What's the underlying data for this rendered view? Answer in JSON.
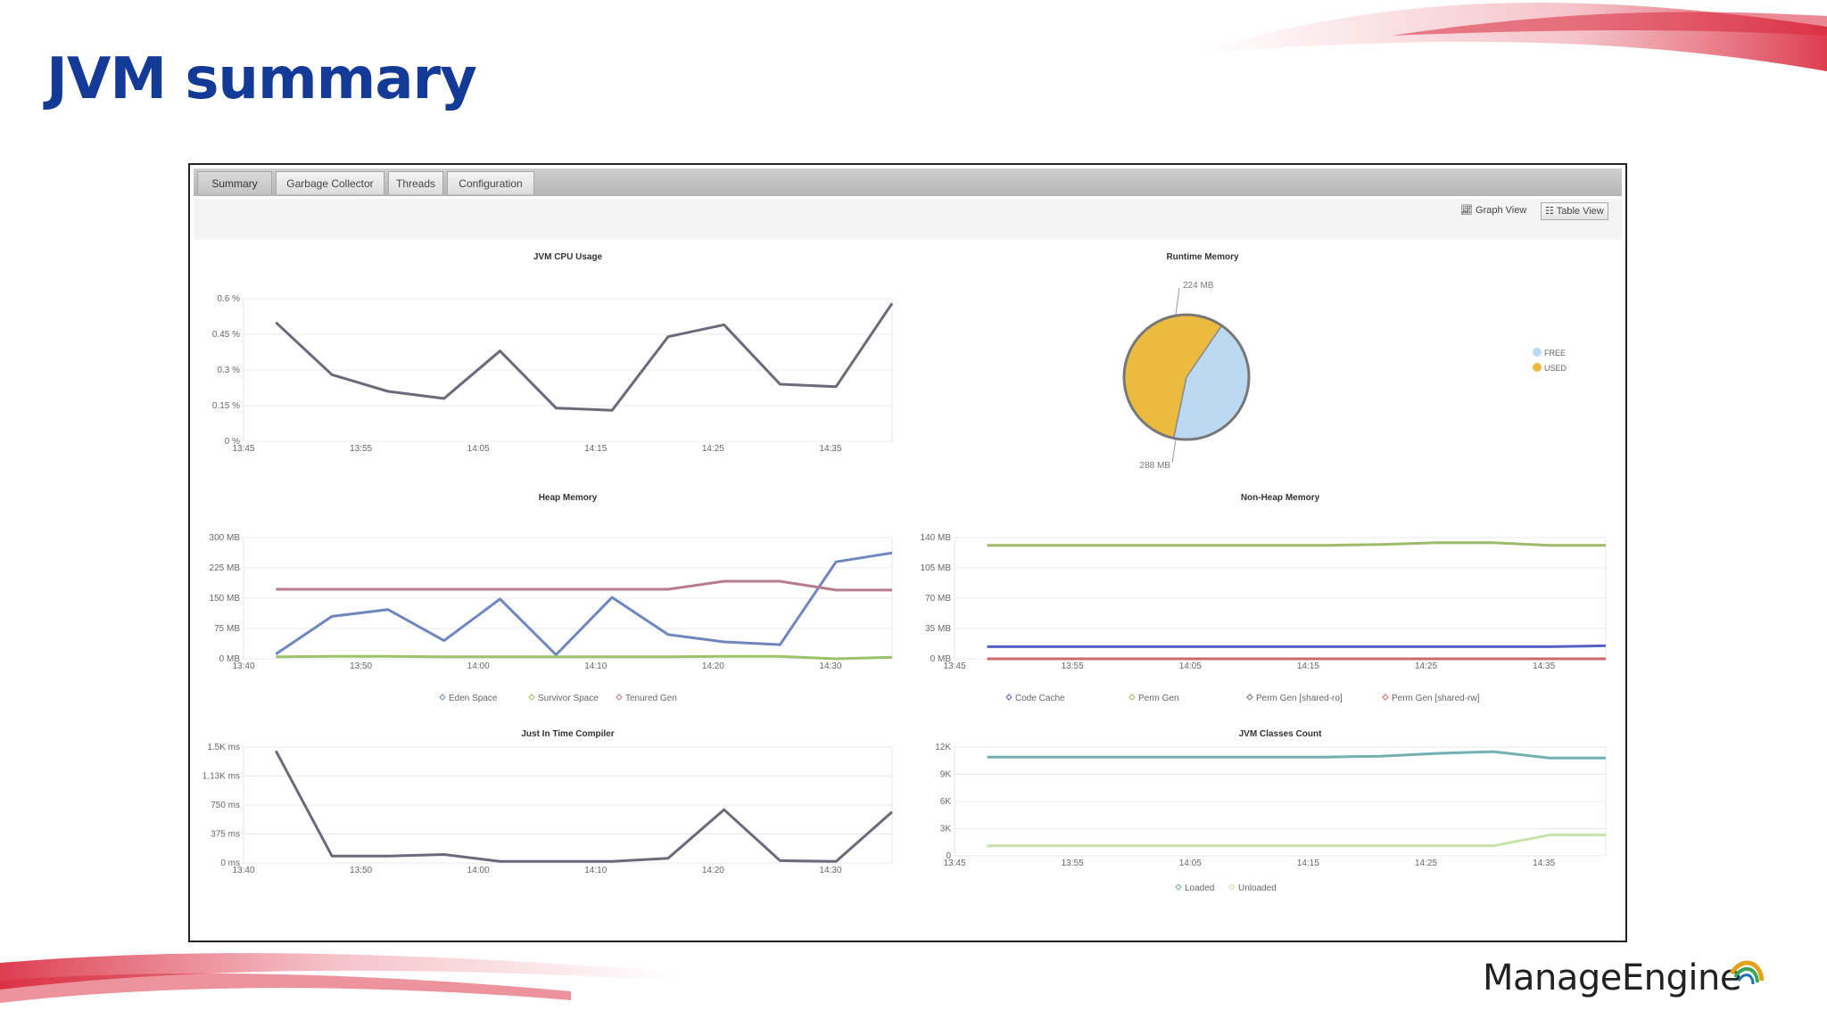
{
  "slide": {
    "title": "JVM summary"
  },
  "brand": {
    "name": "ManageEngine"
  },
  "tabs": [
    "Summary",
    "Garbage Collector",
    "Threads",
    "Configuration"
  ],
  "view_buttons": {
    "graph": "Graph View",
    "table": "Table View"
  },
  "colors": {
    "title": "#123a96",
    "cpu_line": "#6a6a7a",
    "eden": "#6f86c0",
    "survivor": "#9dc26a",
    "tenured": "#b77b8d",
    "code_cache": "#5560c4",
    "perm_gen": "#9dbb6a",
    "perm_ro": "#6a6f82",
    "perm_rw": "#cc6a6a",
    "loaded": "#74b0b0",
    "unloaded": "#c7e3a8",
    "pie_free": "#bcd9f2",
    "pie_used": "#ebbb40"
  },
  "chart_data": [
    {
      "id": "cpu",
      "type": "line",
      "title": "JVM CPU Usage",
      "x": [
        "13:45",
        "13:50",
        "13:55",
        "14:00",
        "14:05",
        "14:10",
        "14:15",
        "14:20",
        "14:25",
        "14:30",
        "14:35",
        "14:40"
      ],
      "xticks": [
        "13:45",
        "13:55",
        "14:05",
        "14:15",
        "14:25",
        "14:35"
      ],
      "ylim": [
        0,
        0.6
      ],
      "yticks": [
        0,
        0.15,
        0.3,
        0.45,
        0.6
      ],
      "yticklabels": [
        "0 %",
        "0.15 %",
        "0.3 %",
        "0.45 %",
        "0.6 %"
      ],
      "series": [
        {
          "values": [
            0.5,
            0.28,
            0.21,
            0.18,
            0.38,
            0.14,
            0.13,
            0.44,
            0.49,
            0.24,
            0.23,
            0.58
          ]
        }
      ]
    },
    {
      "id": "runtime",
      "type": "pie",
      "title": "Runtime Memory",
      "slices": [
        {
          "name": "FREE",
          "value": 224
        },
        {
          "name": "USED",
          "value": 288
        }
      ],
      "labels": [
        "224 MB",
        "288 MB"
      ],
      "legend": "right"
    },
    {
      "id": "heap",
      "type": "line",
      "title": "Heap Memory",
      "x": [
        "13:45",
        "13:50",
        "13:55",
        "14:00",
        "14:05",
        "14:10",
        "14:15",
        "14:20",
        "14:25",
        "14:30",
        "14:35",
        "14:40"
      ],
      "xticks": [
        "13:40",
        "13:50",
        "14:00",
        "14:10",
        "14:20",
        "14:30"
      ],
      "ylim": [
        0,
        300
      ],
      "yticks": [
        0,
        75,
        150,
        225,
        300
      ],
      "yticklabels": [
        "0 MB",
        "75 MB",
        "150 MB",
        "225 MB",
        "300 MB"
      ],
      "series": [
        {
          "name": "Eden Space",
          "values": [
            12,
            105,
            122,
            45,
            148,
            10,
            152,
            60,
            42,
            35,
            240,
            262
          ]
        },
        {
          "name": "Survivor Space",
          "values": [
            5,
            6,
            6,
            5,
            5,
            5,
            5,
            5,
            6,
            6,
            0,
            4
          ]
        },
        {
          "name": "Tenured Gen",
          "values": [
            172,
            172,
            172,
            172,
            172,
            172,
            172,
            172,
            192,
            192,
            170,
            170
          ]
        }
      ]
    },
    {
      "id": "nonheap",
      "type": "line",
      "title": "Non-Heap Memory",
      "x": [
        "13:45",
        "13:50",
        "13:55",
        "14:00",
        "14:05",
        "14:10",
        "14:15",
        "14:20",
        "14:25",
        "14:30",
        "14:35",
        "14:40"
      ],
      "xticks": [
        "13:45",
        "13:55",
        "14:05",
        "14:15",
        "14:25",
        "14:35"
      ],
      "ylim": [
        0,
        140
      ],
      "yticks": [
        0,
        35,
        70,
        105,
        140
      ],
      "yticklabels": [
        "0 MB",
        "35 MB",
        "70 MB",
        "105 MB",
        "140 MB"
      ],
      "series": [
        {
          "name": "Code Cache",
          "values": [
            14,
            14,
            14,
            14,
            14,
            14,
            14,
            14,
            14,
            14,
            14,
            15
          ]
        },
        {
          "name": "Perm Gen",
          "values": [
            131,
            131,
            131,
            131,
            131,
            131,
            131,
            132,
            134,
            134,
            131,
            131
          ]
        },
        {
          "name": "Perm Gen [shared-ro]",
          "values": [
            0,
            0,
            0,
            0,
            0,
            0,
            0,
            0,
            0,
            0,
            0,
            0
          ]
        },
        {
          "name": "Perm Gen [shared-rw]",
          "values": [
            0,
            0,
            0,
            0,
            0,
            0,
            0,
            0,
            0,
            0,
            0,
            0
          ]
        }
      ]
    },
    {
      "id": "jit",
      "type": "line",
      "title": "Just In Time Compiler",
      "x": [
        "13:45",
        "13:50",
        "13:55",
        "14:00",
        "14:05",
        "14:10",
        "14:15",
        "14:20",
        "14:25",
        "14:30",
        "14:35",
        "14:40"
      ],
      "xticks": [
        "13:40",
        "13:50",
        "14:00",
        "14:10",
        "14:20",
        "14:30"
      ],
      "ylim": [
        0,
        1500
      ],
      "yticks": [
        0,
        375,
        750,
        1125,
        1500
      ],
      "yticklabels": [
        "0 ms",
        "375 ms",
        "750 ms",
        "1.13K ms",
        "1.5K ms"
      ],
      "series": [
        {
          "values": [
            1450,
            90,
            90,
            110,
            20,
            20,
            20,
            60,
            690,
            30,
            20,
            660
          ]
        }
      ]
    },
    {
      "id": "classes",
      "type": "line",
      "title": "JVM Classes Count",
      "x": [
        "13:45",
        "13:50",
        "13:55",
        "14:00",
        "14:05",
        "14:10",
        "14:15",
        "14:20",
        "14:25",
        "14:30",
        "14:35",
        "14:40"
      ],
      "xticks": [
        "13:45",
        "13:55",
        "14:05",
        "14:15",
        "14:25",
        "14:35"
      ],
      "ylim": [
        0,
        12000
      ],
      "yticks": [
        0,
        3000,
        6000,
        9000,
        12000
      ],
      "yticklabels": [
        "0",
        "3K",
        "6K",
        "9K",
        "12K"
      ],
      "series": [
        {
          "name": "Loaded",
          "values": [
            10900,
            10900,
            10900,
            10900,
            10900,
            10900,
            10900,
            11000,
            11300,
            11500,
            10800,
            10800
          ]
        },
        {
          "name": "Unloaded",
          "values": [
            1100,
            1100,
            1100,
            1100,
            1100,
            1100,
            1100,
            1100,
            1100,
            1100,
            2300,
            2300
          ]
        }
      ]
    }
  ]
}
